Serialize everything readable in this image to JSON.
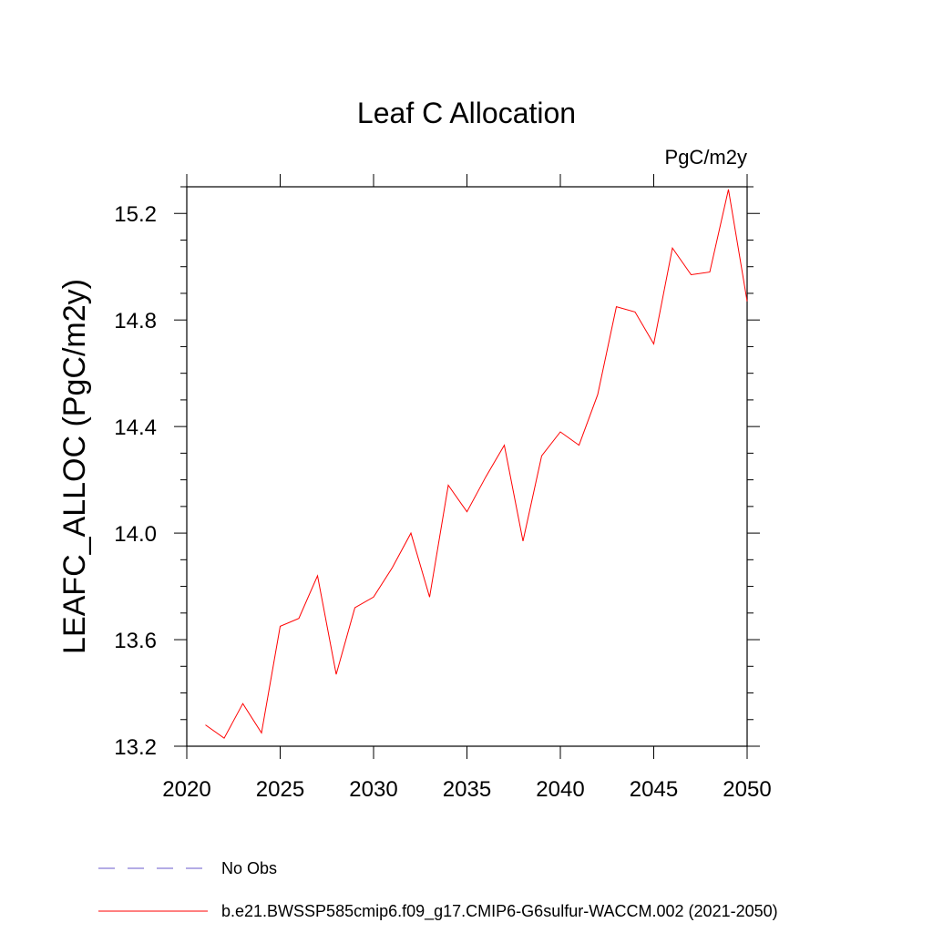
{
  "chart_data": {
    "type": "line",
    "title": "Leaf C Allocation",
    "units_label": "PgC/m2y",
    "xlabel": "",
    "ylabel": "LEAFC_ALLOC  (PgC/m2y)",
    "xlim": [
      2020,
      2050
    ],
    "ylim": [
      13.2,
      15.3
    ],
    "x_ticks": [
      2020,
      2025,
      2030,
      2035,
      2040,
      2045,
      2050
    ],
    "x_tick_labels": [
      "2020",
      "2025",
      "2030",
      "2035",
      "2040",
      "2045",
      "2050"
    ],
    "y_ticks": [
      13.2,
      13.6,
      14.0,
      14.4,
      14.8,
      15.2
    ],
    "y_tick_labels": [
      "13.2",
      "13.6",
      "14.0",
      "14.4",
      "14.8",
      "15.2"
    ],
    "grid": false,
    "legend_position": "bottom-left",
    "series": [
      {
        "name": "b.e21.BWSSP585cmip6.f09_g17.CMIP6-G6sulfur-WACCM.002 (2021-2050)",
        "color": "#ff0000",
        "style": "solid",
        "x": [
          2021,
          2022,
          2023,
          2024,
          2025,
          2026,
          2027,
          2028,
          2029,
          2030,
          2031,
          2032,
          2033,
          2034,
          2035,
          2036,
          2037,
          2038,
          2039,
          2040,
          2041,
          2042,
          2043,
          2044,
          2045,
          2046,
          2047,
          2048,
          2049,
          2050
        ],
        "values": [
          13.28,
          13.23,
          13.36,
          13.25,
          13.65,
          13.68,
          13.84,
          13.47,
          13.72,
          13.76,
          13.87,
          14.0,
          13.76,
          14.18,
          14.08,
          14.21,
          14.33,
          13.97,
          14.29,
          14.38,
          14.33,
          14.52,
          14.85,
          14.83,
          14.71,
          15.07,
          14.97,
          14.98,
          15.29,
          14.87
        ]
      }
    ],
    "legend": [
      {
        "label": "No Obs",
        "color": "#6a5acd",
        "style": "dashed"
      },
      {
        "label": "b.e21.BWSSP585cmip6.f09_g17.CMIP6-G6sulfur-WACCM.002 (2021-2050)",
        "color": "#ff0000",
        "style": "solid"
      }
    ]
  }
}
